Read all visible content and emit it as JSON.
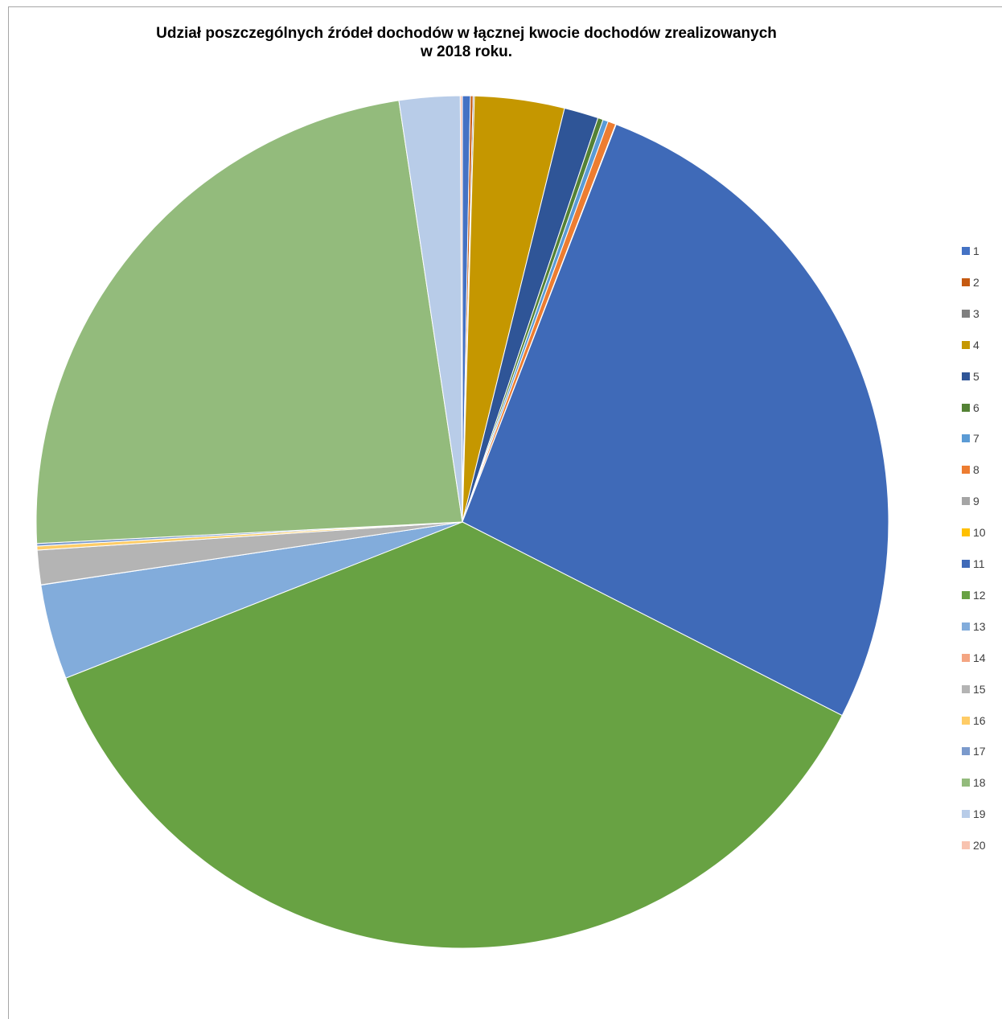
{
  "chart_data": {
    "type": "pie",
    "title_line1": "Udział poszczególnych źródeł dochodów w łącznej kwocie dochodów zrealizowanych",
    "title_line2": "w 2018 roku.",
    "legend_position": "right",
    "categories": [
      "1",
      "2",
      "3",
      "4",
      "5",
      "6",
      "7",
      "8",
      "9",
      "10",
      "11",
      "12",
      "13",
      "14",
      "15",
      "16",
      "17",
      "18",
      "19",
      "20"
    ],
    "values": [
      0.3,
      0.1,
      0.05,
      3.4,
      1.3,
      0.2,
      0.2,
      0.3,
      0.01,
      0.01,
      26.6,
      36.5,
      3.6,
      0.01,
      1.3,
      0.15,
      0.1,
      23.4,
      2.3,
      0.08
    ],
    "colors": [
      "#4472c4",
      "#c55a11",
      "#7f7f7f",
      "#c59700",
      "#2f5597",
      "#548235",
      "#5b9bd5",
      "#ed7d31",
      "#a5a5a5",
      "#ffc000",
      "#3f6ab8",
      "#68a243",
      "#82acdb",
      "#f4a582",
      "#b4b4b4",
      "#ffcc66",
      "#7b9acc",
      "#93bb7c",
      "#b8cce8",
      "#f8c3b0"
    ]
  }
}
